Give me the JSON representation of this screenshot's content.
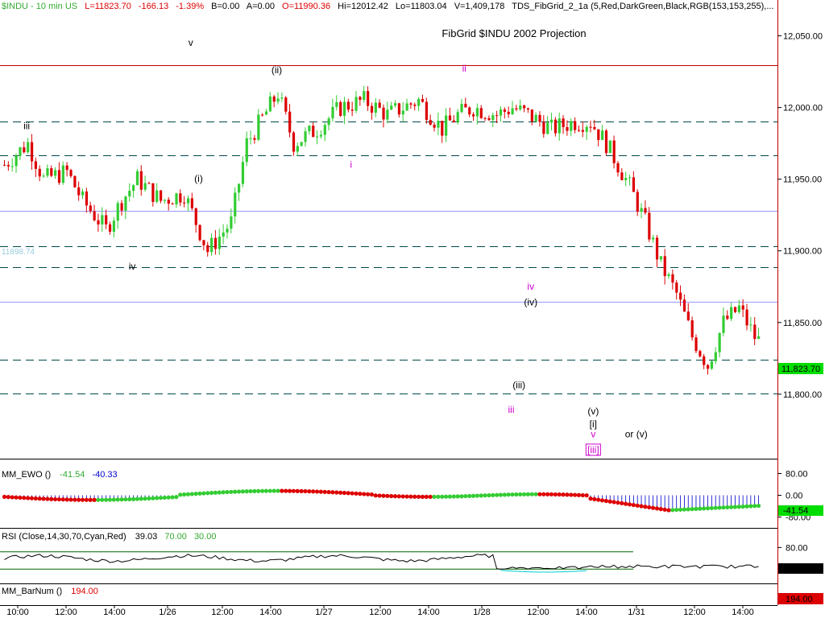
{
  "header": {
    "symbol": "$INDU - 10 min  US",
    "last": "L=11823.70",
    "change": "-166.13",
    "pct": "-1.39%",
    "bid": "B=0.00",
    "ask": "A=0.00",
    "open": "O=11990.36",
    "high": "Hi=12012.42",
    "low": "Lo=11803.04",
    "volume": "V=1,409,178",
    "study": "TDS_FibGrid_2_1a (5,Red,DarkGreen,Black,RGB(153,153,255),..."
  },
  "chart_data": [
    {
      "type": "candlestick",
      "title": "FibGrid $INDU 2002 Projection",
      "ylim": [
        11755,
        12075
      ],
      "price_ticks": [
        "12,050.00",
        "12,000.00",
        "11,950.00",
        "11,900.00",
        "11,850.00",
        "11,800.00"
      ],
      "price_tick_values": [
        12050,
        12000,
        11950,
        11900,
        11850,
        11800
      ],
      "last_price_label": "11,823.70",
      "last_price": 11823.7,
      "faded_level_label": "11898.74",
      "faded_level": 11898.74,
      "levels": [
        {
          "price": 12029.5,
          "style": "solid",
          "color": "#c00000"
        },
        {
          "price": 11990.4,
          "style": "dashed",
          "color": "#004848"
        },
        {
          "price": 11966.5,
          "style": "dashed",
          "color": "#004848"
        },
        {
          "price": 11928.0,
          "style": "solid",
          "color": "#9999ff"
        },
        {
          "price": 11903.0,
          "style": "dashed",
          "color": "#004848"
        },
        {
          "price": 11888.5,
          "style": "dashed",
          "color": "#004848"
        },
        {
          "price": 11864.5,
          "style": "solid",
          "color": "#9999ff"
        },
        {
          "price": 11824.0,
          "style": "dashed",
          "color": "#004848"
        },
        {
          "price": 11800.5,
          "style": "dashed",
          "color": "#004848"
        }
      ],
      "x_ticks": [
        "10:00",
        "12:00",
        "14:00",
        "1/26",
        "12:00",
        "14:00",
        "1/27",
        "12:00",
        "14:00",
        "1/28",
        "12:00",
        "14:00",
        "1/31",
        "12:00",
        "14:00"
      ],
      "bars_shown": 194,
      "waves": [
        {
          "text": "iii",
          "price": 11985,
          "idx": 6,
          "color": "#000000"
        },
        {
          "text": "v",
          "price": 12043,
          "idx": 48,
          "color": "#000000"
        },
        {
          "text": "(ii)",
          "price": 12024,
          "idx": 70,
          "color": "#000000"
        },
        {
          "text": "(i)",
          "price": 11948,
          "idx": 50,
          "color": "#000000"
        },
        {
          "text": "iv",
          "price": 11887,
          "idx": 33,
          "color": "#000000"
        },
        {
          "text": "ii",
          "price": 12025,
          "idx": 118,
          "color": "#cc00cc"
        },
        {
          "text": "i",
          "price": 11958,
          "idx": 89,
          "color": "#cc00cc"
        },
        {
          "text": "iv",
          "price": 11873,
          "idx": 135,
          "color": "#cc00cc"
        },
        {
          "text": "(iv)",
          "price": 11862,
          "idx": 135,
          "color": "#000000"
        },
        {
          "text": "(iii)",
          "price": 11804,
          "idx": 132,
          "color": "#000000"
        },
        {
          "text": "iii",
          "price": 11787,
          "idx": 130,
          "color": "#cc00cc"
        },
        {
          "text": "(v)",
          "price": 11786,
          "idx": 151,
          "color": "#000000"
        },
        {
          "text": "[i]",
          "price": 11777,
          "idx": 151,
          "color": "#000000"
        },
        {
          "text": "v",
          "price": 11770,
          "idx": 151,
          "color": "#cc00cc"
        },
        {
          "text": "[iii]",
          "price": 11759,
          "idx": 151,
          "color": "#cc00cc"
        },
        {
          "text": "or (v)",
          "price": 11770,
          "idx": 162,
          "color": "#000000"
        }
      ]
    },
    {
      "type": "indicator",
      "name": "MM_EWO ()",
      "values_label": [
        "-41.54",
        "-40.33"
      ],
      "ylim": [
        -120,
        120
      ],
      "ticks": [
        "80.00",
        "0.00",
        "-80.00"
      ],
      "tick_values": [
        80,
        0,
        -80
      ],
      "last_label": "-41.54"
    },
    {
      "type": "indicator",
      "name": "RSI (Close,14,30,70,Cyan,Red)",
      "values_label": [
        "39.03",
        "70.00",
        "30.00"
      ],
      "ylim": [
        0,
        100
      ],
      "ticks": [
        "80.00"
      ],
      "tick_values": [
        80
      ],
      "bands": [
        70,
        30
      ],
      "last_label": "39.03"
    },
    {
      "type": "indicator",
      "name": "MM_BarNum ()",
      "values_label": [
        "194.00"
      ],
      "last_label": "194.00"
    }
  ],
  "colors": {
    "up": "#33cc33",
    "down": "#dd0000",
    "level_dash": "#004848",
    "level_violet": "#9999ff",
    "level_red": "#c00000",
    "wave_magenta": "#cc00cc",
    "last_box": "#00dd00",
    "barnum_box": "#dd0000"
  }
}
